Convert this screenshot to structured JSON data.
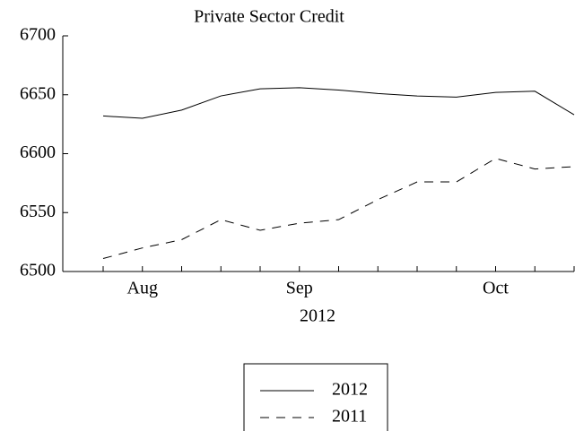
{
  "chart_data": {
    "type": "line",
    "title": "Private Sector Credit",
    "xlabel": "2012",
    "categories": [
      null,
      "Aug",
      null,
      null,
      null,
      "Sep",
      null,
      null,
      null,
      null,
      "Oct",
      null,
      null
    ],
    "series": [
      {
        "name": "2012",
        "color": "#000000",
        "dash": "solid",
        "values": [
          6632,
          6630,
          6637,
          6649,
          6655,
          6656,
          6654,
          6651,
          6649,
          6648,
          6652,
          6653,
          6633
        ]
      },
      {
        "name": "2011",
        "color": "#000000",
        "dash": "dashed",
        "values": [
          6511,
          6520,
          6527,
          6544,
          6535,
          6541,
          6544,
          6561,
          6576,
          6576,
          6596,
          6587,
          6589
        ]
      }
    ],
    "ylim": [
      6500,
      6700
    ],
    "yticks": [
      6500,
      6550,
      6600,
      6650,
      6700
    ],
    "grid": false,
    "legend": "bottom"
  }
}
